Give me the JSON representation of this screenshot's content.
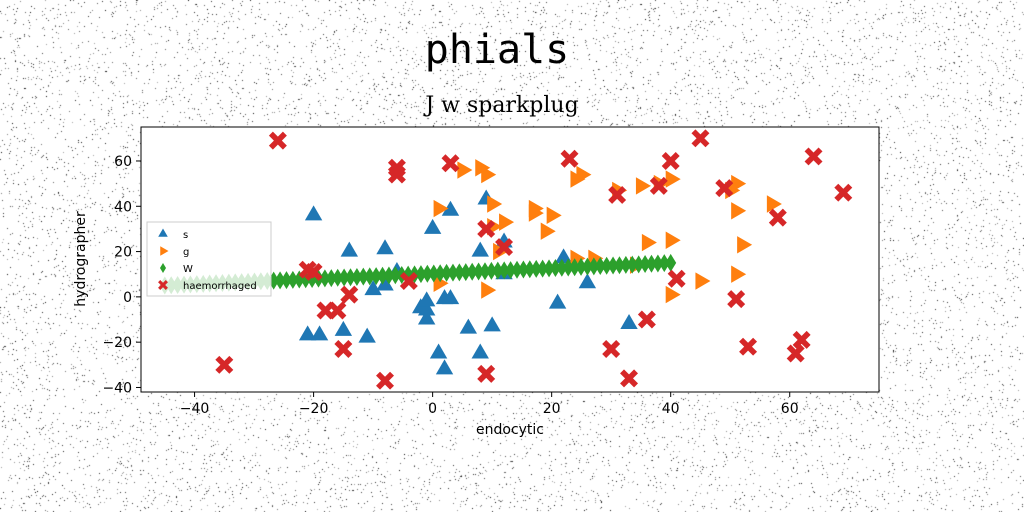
{
  "chart_data": {
    "type": "scatter",
    "suptitle": "phials",
    "title": "J w sparkplug",
    "xlabel": "endocytic",
    "ylabel": "hydrographer",
    "xlim": [
      -49,
      75
    ],
    "ylim": [
      -42,
      75
    ],
    "xticks": [
      -40,
      -20,
      0,
      20,
      40,
      60
    ],
    "yticks": [
      -40,
      -20,
      0,
      20,
      40,
      60
    ],
    "grid": false,
    "legend_position": "center-left",
    "series": [
      {
        "name": "s",
        "marker": "triangle-up",
        "color": "#1f77b4",
        "points": [
          [
            -20,
            36
          ],
          [
            -21,
            -17
          ],
          [
            -19,
            -17
          ],
          [
            -15,
            -15
          ],
          [
            -14,
            20
          ],
          [
            -11,
            -18
          ],
          [
            -10,
            3
          ],
          [
            -8,
            21
          ],
          [
            -8,
            5
          ],
          [
            -6,
            11
          ],
          [
            -2,
            -5
          ],
          [
            -1,
            -10
          ],
          [
            -1,
            -6
          ],
          [
            -1,
            -2
          ],
          [
            0,
            30
          ],
          [
            1,
            -25
          ],
          [
            2,
            -1
          ],
          [
            2,
            -32
          ],
          [
            3,
            -1
          ],
          [
            3,
            38
          ],
          [
            6,
            -14
          ],
          [
            8,
            20
          ],
          [
            8,
            -25
          ],
          [
            9,
            43
          ],
          [
            10,
            -13
          ],
          [
            12,
            24
          ],
          [
            12,
            10
          ],
          [
            21,
            -3
          ],
          [
            22,
            17
          ],
          [
            26,
            6
          ],
          [
            33,
            -12
          ]
        ]
      },
      {
        "name": "g",
        "marker": "triangle-right",
        "color": "#ff7f0e",
        "points": [
          [
            1,
            6
          ],
          [
            1,
            39
          ],
          [
            5,
            56
          ],
          [
            8,
            57
          ],
          [
            9,
            54
          ],
          [
            9,
            3
          ],
          [
            10,
            41
          ],
          [
            10,
            31
          ],
          [
            11,
            20
          ],
          [
            12,
            33
          ],
          [
            17,
            37
          ],
          [
            17,
            39
          ],
          [
            19,
            29
          ],
          [
            20,
            36
          ],
          [
            24,
            17
          ],
          [
            24,
            52
          ],
          [
            25,
            54
          ],
          [
            27,
            17
          ],
          [
            31,
            47
          ],
          [
            34,
            14
          ],
          [
            35,
            49
          ],
          [
            36,
            24
          ],
          [
            38,
            50
          ],
          [
            40,
            25
          ],
          [
            40,
            52
          ],
          [
            40,
            1
          ],
          [
            45,
            7
          ],
          [
            50,
            47
          ],
          [
            51,
            50
          ],
          [
            51,
            38
          ],
          [
            51,
            10
          ],
          [
            52,
            23
          ],
          [
            57,
            41
          ]
        ]
      },
      {
        "name": "W",
        "marker": "diamond",
        "color": "#2ca02c",
        "line": {
          "x_start": -45,
          "x_end": 40,
          "y_start": 5,
          "y_end": 15,
          "count": 80
        }
      },
      {
        "name": "haemorrhaged",
        "marker": "x",
        "color": "#d62728",
        "points": [
          [
            -35,
            -30
          ],
          [
            -26,
            69
          ],
          [
            -21,
            12
          ],
          [
            -20,
            11
          ],
          [
            -18,
            -6
          ],
          [
            -16,
            -6
          ],
          [
            -15,
            -23
          ],
          [
            -14,
            1
          ],
          [
            -8,
            -37
          ],
          [
            -6,
            57
          ],
          [
            -6,
            54
          ],
          [
            -4,
            7
          ],
          [
            3,
            59
          ],
          [
            9,
            30
          ],
          [
            9,
            -34
          ],
          [
            12,
            22
          ],
          [
            23,
            61
          ],
          [
            30,
            -23
          ],
          [
            31,
            45
          ],
          [
            33,
            -36
          ],
          [
            36,
            -10
          ],
          [
            38,
            49
          ],
          [
            40,
            60
          ],
          [
            41,
            8
          ],
          [
            45,
            70
          ],
          [
            49,
            48
          ],
          [
            51,
            -1
          ],
          [
            53,
            -22
          ],
          [
            58,
            35
          ],
          [
            61,
            -25
          ],
          [
            62,
            -19
          ],
          [
            64,
            62
          ],
          [
            69,
            46
          ]
        ]
      }
    ]
  }
}
